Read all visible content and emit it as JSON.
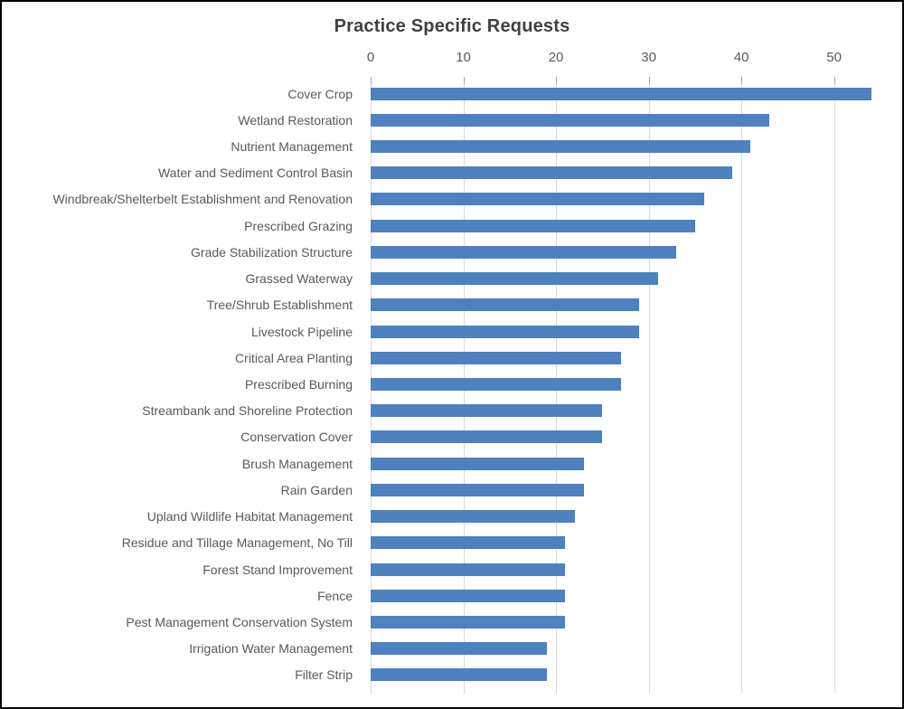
{
  "chart_data": {
    "type": "bar",
    "orientation": "horizontal",
    "title": "Practice Specific Requests",
    "categories": [
      "Cover Crop",
      "Wetland Restoration",
      "Nutrient Management",
      "Water and Sediment Control Basin",
      "Windbreak/Shelterbelt Establishment and Renovation",
      "Prescribed Grazing",
      "Grade Stabilization Structure",
      "Grassed Waterway",
      "Tree/Shrub Establishment",
      "Livestock Pipeline",
      "Critical Area Planting",
      "Prescribed Burning",
      "Streambank and Shoreline Protection",
      "Conservation Cover",
      "Brush Management",
      "Rain Garden",
      "Upland Wildlife Habitat Management",
      "Residue and Tillage Management, No Till",
      "Forest Stand Improvement",
      "Fence",
      "Pest Management Conservation System",
      "Irrigation Water Management",
      "Filter Strip"
    ],
    "values": [
      54,
      43,
      41,
      39,
      36,
      35,
      33,
      31,
      29,
      29,
      27,
      27,
      25,
      25,
      23,
      23,
      22,
      21,
      21,
      21,
      21,
      19,
      19
    ],
    "x_ticks": [
      0,
      10,
      20,
      30,
      40,
      50
    ],
    "xlim": [
      0,
      55.3
    ],
    "xlabel": "",
    "ylabel": "",
    "axis_position": "top",
    "grid": true,
    "legend": false
  },
  "colors": {
    "bar": "#4E81BD",
    "gridline": "#D9D9D9",
    "tickmark": "#A6A6A6",
    "tick_label": "#595959",
    "category_label": "#595959",
    "title": "#404040",
    "frame_border": "#000000",
    "background": "#FFFFFF"
  }
}
